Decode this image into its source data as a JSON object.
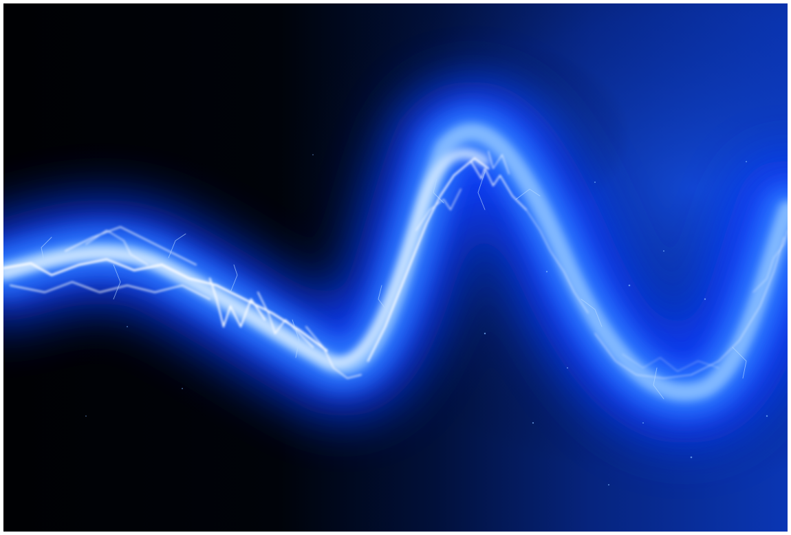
{
  "image": {
    "subject": "electric-wave",
    "colors": {
      "background_dark": "#000206",
      "background_right": "#0a2fa0",
      "glow_outer": "#0b3cff",
      "glow_mid": "#2f7cff",
      "glow_inner": "#8fc3ff",
      "core": "#ffffff",
      "border": "#ffffff"
    }
  }
}
